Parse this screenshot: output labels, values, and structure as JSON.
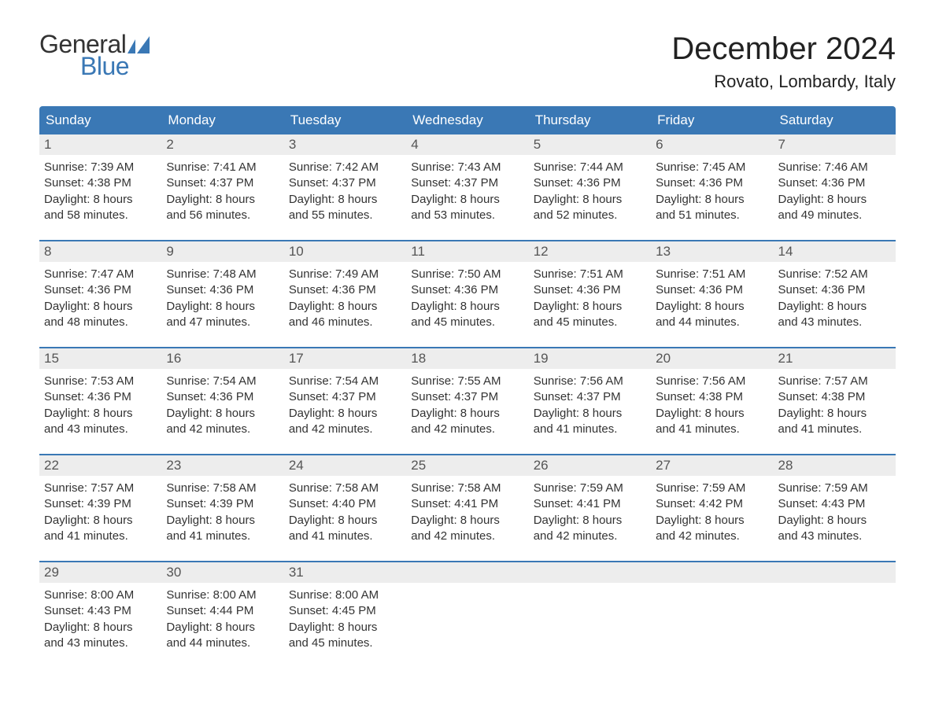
{
  "logo": {
    "text_general": "General",
    "text_blue": "Blue",
    "icon_color": "#3a78b5",
    "general_color": "#333333",
    "blue_color": "#3a78b5"
  },
  "title": "December 2024",
  "location": "Rovato, Lombardy, Italy",
  "colors": {
    "header_bg": "#3a78b5",
    "header_text": "#ffffff",
    "daynum_bg": "#ededed",
    "daynum_text": "#555555",
    "body_text": "#333333",
    "week_border": "#3a78b5",
    "page_bg": "#ffffff"
  },
  "day_headers": [
    "Sunday",
    "Monday",
    "Tuesday",
    "Wednesday",
    "Thursday",
    "Friday",
    "Saturday"
  ],
  "weeks": [
    [
      {
        "n": "1",
        "sr": "Sunrise: 7:39 AM",
        "ss": "Sunset: 4:38 PM",
        "d1": "Daylight: 8 hours",
        "d2": "and 58 minutes."
      },
      {
        "n": "2",
        "sr": "Sunrise: 7:41 AM",
        "ss": "Sunset: 4:37 PM",
        "d1": "Daylight: 8 hours",
        "d2": "and 56 minutes."
      },
      {
        "n": "3",
        "sr": "Sunrise: 7:42 AM",
        "ss": "Sunset: 4:37 PM",
        "d1": "Daylight: 8 hours",
        "d2": "and 55 minutes."
      },
      {
        "n": "4",
        "sr": "Sunrise: 7:43 AM",
        "ss": "Sunset: 4:37 PM",
        "d1": "Daylight: 8 hours",
        "d2": "and 53 minutes."
      },
      {
        "n": "5",
        "sr": "Sunrise: 7:44 AM",
        "ss": "Sunset: 4:36 PM",
        "d1": "Daylight: 8 hours",
        "d2": "and 52 minutes."
      },
      {
        "n": "6",
        "sr": "Sunrise: 7:45 AM",
        "ss": "Sunset: 4:36 PM",
        "d1": "Daylight: 8 hours",
        "d2": "and 51 minutes."
      },
      {
        "n": "7",
        "sr": "Sunrise: 7:46 AM",
        "ss": "Sunset: 4:36 PM",
        "d1": "Daylight: 8 hours",
        "d2": "and 49 minutes."
      }
    ],
    [
      {
        "n": "8",
        "sr": "Sunrise: 7:47 AM",
        "ss": "Sunset: 4:36 PM",
        "d1": "Daylight: 8 hours",
        "d2": "and 48 minutes."
      },
      {
        "n": "9",
        "sr": "Sunrise: 7:48 AM",
        "ss": "Sunset: 4:36 PM",
        "d1": "Daylight: 8 hours",
        "d2": "and 47 minutes."
      },
      {
        "n": "10",
        "sr": "Sunrise: 7:49 AM",
        "ss": "Sunset: 4:36 PM",
        "d1": "Daylight: 8 hours",
        "d2": "and 46 minutes."
      },
      {
        "n": "11",
        "sr": "Sunrise: 7:50 AM",
        "ss": "Sunset: 4:36 PM",
        "d1": "Daylight: 8 hours",
        "d2": "and 45 minutes."
      },
      {
        "n": "12",
        "sr": "Sunrise: 7:51 AM",
        "ss": "Sunset: 4:36 PM",
        "d1": "Daylight: 8 hours",
        "d2": "and 45 minutes."
      },
      {
        "n": "13",
        "sr": "Sunrise: 7:51 AM",
        "ss": "Sunset: 4:36 PM",
        "d1": "Daylight: 8 hours",
        "d2": "and 44 minutes."
      },
      {
        "n": "14",
        "sr": "Sunrise: 7:52 AM",
        "ss": "Sunset: 4:36 PM",
        "d1": "Daylight: 8 hours",
        "d2": "and 43 minutes."
      }
    ],
    [
      {
        "n": "15",
        "sr": "Sunrise: 7:53 AM",
        "ss": "Sunset: 4:36 PM",
        "d1": "Daylight: 8 hours",
        "d2": "and 43 minutes."
      },
      {
        "n": "16",
        "sr": "Sunrise: 7:54 AM",
        "ss": "Sunset: 4:36 PM",
        "d1": "Daylight: 8 hours",
        "d2": "and 42 minutes."
      },
      {
        "n": "17",
        "sr": "Sunrise: 7:54 AM",
        "ss": "Sunset: 4:37 PM",
        "d1": "Daylight: 8 hours",
        "d2": "and 42 minutes."
      },
      {
        "n": "18",
        "sr": "Sunrise: 7:55 AM",
        "ss": "Sunset: 4:37 PM",
        "d1": "Daylight: 8 hours",
        "d2": "and 42 minutes."
      },
      {
        "n": "19",
        "sr": "Sunrise: 7:56 AM",
        "ss": "Sunset: 4:37 PM",
        "d1": "Daylight: 8 hours",
        "d2": "and 41 minutes."
      },
      {
        "n": "20",
        "sr": "Sunrise: 7:56 AM",
        "ss": "Sunset: 4:38 PM",
        "d1": "Daylight: 8 hours",
        "d2": "and 41 minutes."
      },
      {
        "n": "21",
        "sr": "Sunrise: 7:57 AM",
        "ss": "Sunset: 4:38 PM",
        "d1": "Daylight: 8 hours",
        "d2": "and 41 minutes."
      }
    ],
    [
      {
        "n": "22",
        "sr": "Sunrise: 7:57 AM",
        "ss": "Sunset: 4:39 PM",
        "d1": "Daylight: 8 hours",
        "d2": "and 41 minutes."
      },
      {
        "n": "23",
        "sr": "Sunrise: 7:58 AM",
        "ss": "Sunset: 4:39 PM",
        "d1": "Daylight: 8 hours",
        "d2": "and 41 minutes."
      },
      {
        "n": "24",
        "sr": "Sunrise: 7:58 AM",
        "ss": "Sunset: 4:40 PM",
        "d1": "Daylight: 8 hours",
        "d2": "and 41 minutes."
      },
      {
        "n": "25",
        "sr": "Sunrise: 7:58 AM",
        "ss": "Sunset: 4:41 PM",
        "d1": "Daylight: 8 hours",
        "d2": "and 42 minutes."
      },
      {
        "n": "26",
        "sr": "Sunrise: 7:59 AM",
        "ss": "Sunset: 4:41 PM",
        "d1": "Daylight: 8 hours",
        "d2": "and 42 minutes."
      },
      {
        "n": "27",
        "sr": "Sunrise: 7:59 AM",
        "ss": "Sunset: 4:42 PM",
        "d1": "Daylight: 8 hours",
        "d2": "and 42 minutes."
      },
      {
        "n": "28",
        "sr": "Sunrise: 7:59 AM",
        "ss": "Sunset: 4:43 PM",
        "d1": "Daylight: 8 hours",
        "d2": "and 43 minutes."
      }
    ],
    [
      {
        "n": "29",
        "sr": "Sunrise: 8:00 AM",
        "ss": "Sunset: 4:43 PM",
        "d1": "Daylight: 8 hours",
        "d2": "and 43 minutes."
      },
      {
        "n": "30",
        "sr": "Sunrise: 8:00 AM",
        "ss": "Sunset: 4:44 PM",
        "d1": "Daylight: 8 hours",
        "d2": "and 44 minutes."
      },
      {
        "n": "31",
        "sr": "Sunrise: 8:00 AM",
        "ss": "Sunset: 4:45 PM",
        "d1": "Daylight: 8 hours",
        "d2": "and 45 minutes."
      },
      null,
      null,
      null,
      null
    ]
  ]
}
